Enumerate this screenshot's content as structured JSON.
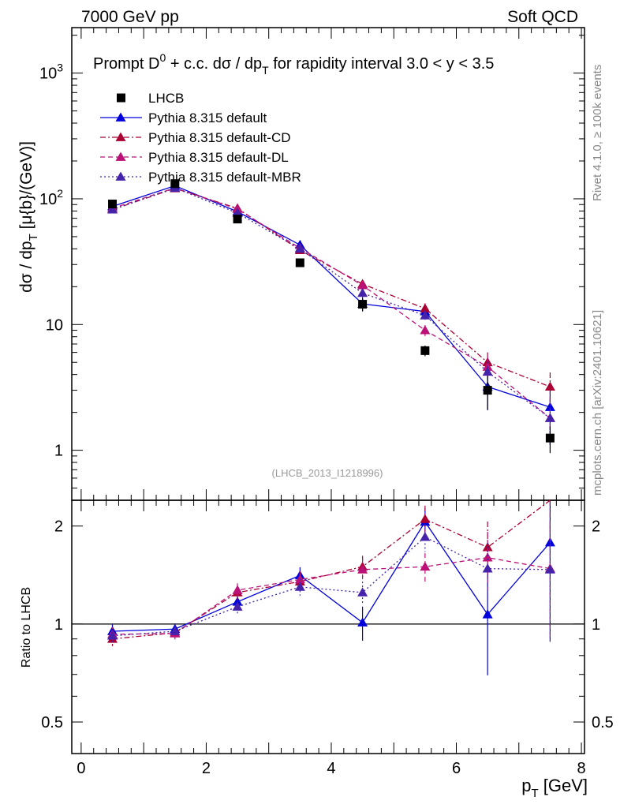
{
  "header": {
    "energy": "7000 GeV pp",
    "process": "Soft QCD"
  },
  "side_labels": {
    "rivet": "Rivet 4.1.0, ≥ 100k events",
    "mcplots": "mcplots.cern.ch [arXiv:2401.10621]"
  },
  "reference": "(LHCB_2013_I1218996)",
  "chart_data": {
    "type": "scatter",
    "title": "Prompt D^0 + c.c.  dσ / dp_T for rapidity interval 3.0 < y < 3.5",
    "title_parts": {
      "a": "Prompt D",
      "sup": "0",
      "b": " + c.c.  dσ / dp",
      "sub": "T",
      "c": " for rapidity interval 3.0 < y < 3.5"
    },
    "xlabel": "p_T [GeV]",
    "xlabel_parts": {
      "a": "p",
      "sub": "T",
      "b": " [GeV]"
    },
    "ylabel": "dσ / dp_T [μ{b}/(GeV)]",
    "ylabel_parts": {
      "a": "dσ / dp",
      "sub": "T",
      "b": " [μ{b}/(GeV)]"
    },
    "ratio_ylabel": "Ratio to LHCB",
    "xlim": [
      -0.15,
      8.05
    ],
    "ylim": [
      0.4,
      2300
    ],
    "yscale": "log",
    "ratio_ylim": [
      0.4,
      2.4
    ],
    "x": [
      0.5,
      1.5,
      2.5,
      3.5,
      4.5,
      5.5,
      6.5,
      7.5
    ],
    "x_ticks": [
      0,
      2,
      4,
      6,
      8
    ],
    "y_ticks": [
      {
        "value": 1,
        "label": "1",
        "exp": ""
      },
      {
        "value": 10,
        "label": "10",
        "exp": ""
      },
      {
        "value": 100,
        "label": "10",
        "exp": "2"
      },
      {
        "value": 1000,
        "label": "10",
        "exp": "3"
      }
    ],
    "ratio_ticks": [
      {
        "value": 0.5,
        "label": "0.5"
      },
      {
        "value": 1,
        "label": "1"
      },
      {
        "value": 2,
        "label": "2"
      }
    ],
    "data": {
      "name": "LHCB",
      "values": [
        91,
        132,
        69,
        31,
        14.5,
        6.2,
        3.0,
        1.25
      ],
      "errors": [
        5,
        7,
        4,
        2,
        1.8,
        0.6,
        0.9,
        0.3
      ]
    },
    "series": [
      {
        "name": "Pythia 8.315 default",
        "color": "#0000dd",
        "dash": "",
        "marker": "triangle",
        "values": [
          87,
          127,
          79,
          43,
          14.6,
          12.7,
          3.2,
          2.2
        ],
        "rel_errors": [
          0.05,
          0.04,
          0.05,
          0.06,
          0.12,
          0.1,
          0.35,
          0.5
        ],
        "ratio": [
          0.95,
          0.965,
          1.17,
          1.41,
          1.01,
          2.06,
          1.07,
          1.78
        ]
      },
      {
        "name": "Pythia 8.315 default-CD",
        "color": "#aa0033",
        "dash": "7,3,2,3",
        "marker": "triangle",
        "values": [
          82,
          121,
          84,
          39,
          21,
          13.4,
          5.0,
          3.2
        ],
        "rel_errors": [
          0.05,
          0.04,
          0.05,
          0.06,
          0.08,
          0.1,
          0.2,
          0.3
        ],
        "ratio": [
          0.9,
          0.94,
          1.25,
          1.35,
          1.5,
          2.1,
          1.72,
          2.45
        ]
      },
      {
        "name": "Pythia 8.315 default-DL",
        "color": "#bb1177",
        "dash": "6,4",
        "marker": "triangle",
        "values": [
          84,
          122,
          83,
          40.5,
          20.5,
          9.0,
          4.6,
          1.8
        ],
        "rel_errors": [
          0.05,
          0.04,
          0.05,
          0.06,
          0.08,
          0.1,
          0.2,
          0.4
        ],
        "ratio": [
          0.93,
          0.935,
          1.27,
          1.37,
          1.47,
          1.5,
          1.6,
          1.48
        ]
      },
      {
        "name": "Pythia 8.315 default-MBR",
        "color": "#4422aa",
        "dash": "2,3",
        "marker": "triangle",
        "values": [
          82,
          122,
          77,
          40,
          17.8,
          11.8,
          4.2,
          1.8
        ],
        "rel_errors": [
          0.05,
          0.04,
          0.05,
          0.06,
          0.08,
          0.1,
          0.2,
          0.4
        ],
        "ratio": [
          0.92,
          0.95,
          1.13,
          1.3,
          1.25,
          1.85,
          1.48,
          1.47
        ]
      }
    ]
  }
}
